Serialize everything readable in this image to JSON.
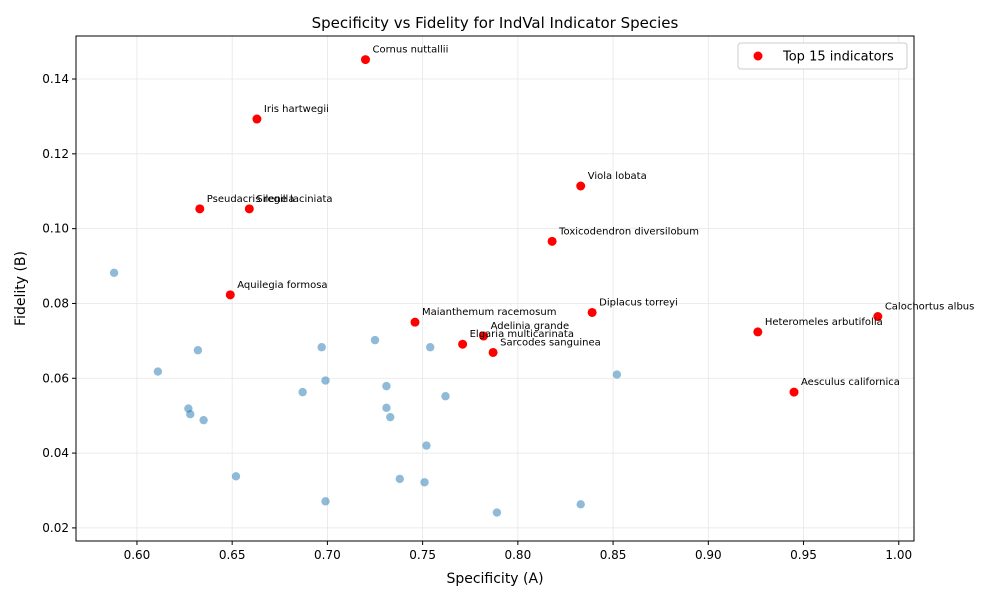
{
  "chart_data": {
    "type": "scatter",
    "title": "Specificity vs Fidelity for IndVal Indicator Species",
    "xlabel": "Specificity (A)",
    "ylabel": "Fidelity (B)",
    "xlim": [
      0.568,
      1.008
    ],
    "ylim": [
      0.0165,
      0.1515
    ],
    "xticks": [
      "0.60",
      "0.65",
      "0.70",
      "0.75",
      "0.80",
      "0.85",
      "0.90",
      "0.95",
      "1.00"
    ],
    "yticks": [
      "0.02",
      "0.04",
      "0.06",
      "0.08",
      "0.10",
      "0.12",
      "0.14"
    ],
    "grid": true,
    "legend": {
      "placement": "top-right",
      "entries": [
        "Top 15 indicators"
      ]
    },
    "colors": {
      "other": "#1f77b4",
      "top": "#ff0000"
    },
    "series": [
      {
        "role": "other",
        "points": [
          {
            "x": 0.588,
            "y": 0.0882
          },
          {
            "x": 0.611,
            "y": 0.0618
          },
          {
            "x": 0.627,
            "y": 0.0519
          },
          {
            "x": 0.628,
            "y": 0.0504
          },
          {
            "x": 0.632,
            "y": 0.0675
          },
          {
            "x": 0.635,
            "y": 0.0488
          },
          {
            "x": 0.652,
            "y": 0.0338
          },
          {
            "x": 0.687,
            "y": 0.0563
          },
          {
            "x": 0.697,
            "y": 0.0683
          },
          {
            "x": 0.699,
            "y": 0.0594
          },
          {
            "x": 0.699,
            "y": 0.0271
          },
          {
            "x": 0.725,
            "y": 0.0702
          },
          {
            "x": 0.731,
            "y": 0.0579
          },
          {
            "x": 0.731,
            "y": 0.0521
          },
          {
            "x": 0.733,
            "y": 0.0496
          },
          {
            "x": 0.738,
            "y": 0.0331
          },
          {
            "x": 0.751,
            "y": 0.0322
          },
          {
            "x": 0.752,
            "y": 0.042
          },
          {
            "x": 0.754,
            "y": 0.0683
          },
          {
            "x": 0.762,
            "y": 0.0552
          },
          {
            "x": 0.789,
            "y": 0.0241
          },
          {
            "x": 0.833,
            "y": 0.0263
          },
          {
            "x": 0.852,
            "y": 0.061
          }
        ]
      },
      {
        "name": "Top 15 indicators",
        "role": "top",
        "points": [
          {
            "x": 0.72,
            "y": 0.1452,
            "label": "Cornus nuttallii"
          },
          {
            "x": 0.663,
            "y": 0.1293,
            "label": "Iris hartwegii"
          },
          {
            "x": 0.833,
            "y": 0.1114,
            "label": "Viola lobata"
          },
          {
            "x": 0.633,
            "y": 0.1053,
            "label": "Pseudacris regilla"
          },
          {
            "x": 0.659,
            "y": 0.1053,
            "label": "Silene laciniata"
          },
          {
            "x": 0.818,
            "y": 0.0966,
            "label": "Toxicodendron diversilobum"
          },
          {
            "x": 0.649,
            "y": 0.0823,
            "label": "Aquilegia formosa"
          },
          {
            "x": 0.839,
            "y": 0.0776,
            "label": "Diplacus torreyi"
          },
          {
            "x": 0.989,
            "y": 0.0765,
            "label": "Calochortus albus"
          },
          {
            "x": 0.746,
            "y": 0.075,
            "label": "Maianthemum racemosum"
          },
          {
            "x": 0.926,
            "y": 0.0724,
            "label": "Heteromeles arbutifolia"
          },
          {
            "x": 0.782,
            "y": 0.0713,
            "label": "Adelinia grande"
          },
          {
            "x": 0.771,
            "y": 0.0691,
            "label": "Elgaria multicarinata"
          },
          {
            "x": 0.787,
            "y": 0.0669,
            "label": "Sarcodes sanguinea"
          },
          {
            "x": 0.945,
            "y": 0.0563,
            "label": "Aesculus californica"
          }
        ]
      }
    ]
  }
}
